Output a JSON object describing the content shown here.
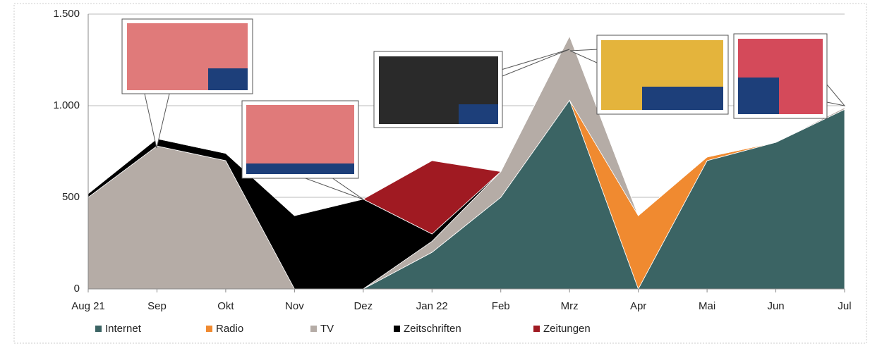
{
  "chart_data": {
    "type": "stacked-area",
    "categories": [
      "Aug 21",
      "Sep",
      "Okt",
      "Nov",
      "Dez",
      "Jan 22",
      "Feb",
      "Mrz",
      "Apr",
      "Mai",
      "Jun",
      "Jul"
    ],
    "series": [
      {
        "name": "Internet",
        "color": "#3b6464",
        "values": [
          0,
          0,
          0,
          0,
          0,
          200,
          500,
          1030,
          0,
          700,
          800,
          980
        ]
      },
      {
        "name": "Radio",
        "color": "#f08a30",
        "values": [
          0,
          0,
          0,
          0,
          0,
          0,
          0,
          0,
          400,
          20,
          0,
          0
        ]
      },
      {
        "name": "TV",
        "color": "#b5aca6",
        "values": [
          500,
          780,
          700,
          0,
          0,
          60,
          140,
          350,
          0,
          0,
          0,
          10
        ]
      },
      {
        "name": "Zeitschriften",
        "color": "#000000",
        "values": [
          20,
          40,
          40,
          400,
          490,
          40,
          0,
          0,
          0,
          0,
          0,
          0
        ]
      },
      {
        "name": "Zeitungen",
        "color": "#a01a22",
        "values": [
          0,
          0,
          0,
          0,
          0,
          400,
          0,
          0,
          0,
          0,
          0,
          0
        ]
      }
    ],
    "ylim": [
      0,
      1500
    ],
    "yticks": [
      0,
      500,
      {
        "value": 1000,
        "label": "1.000"
      },
      {
        "value": 1500,
        "label": "1.500"
      }
    ],
    "grid": true
  }
}
